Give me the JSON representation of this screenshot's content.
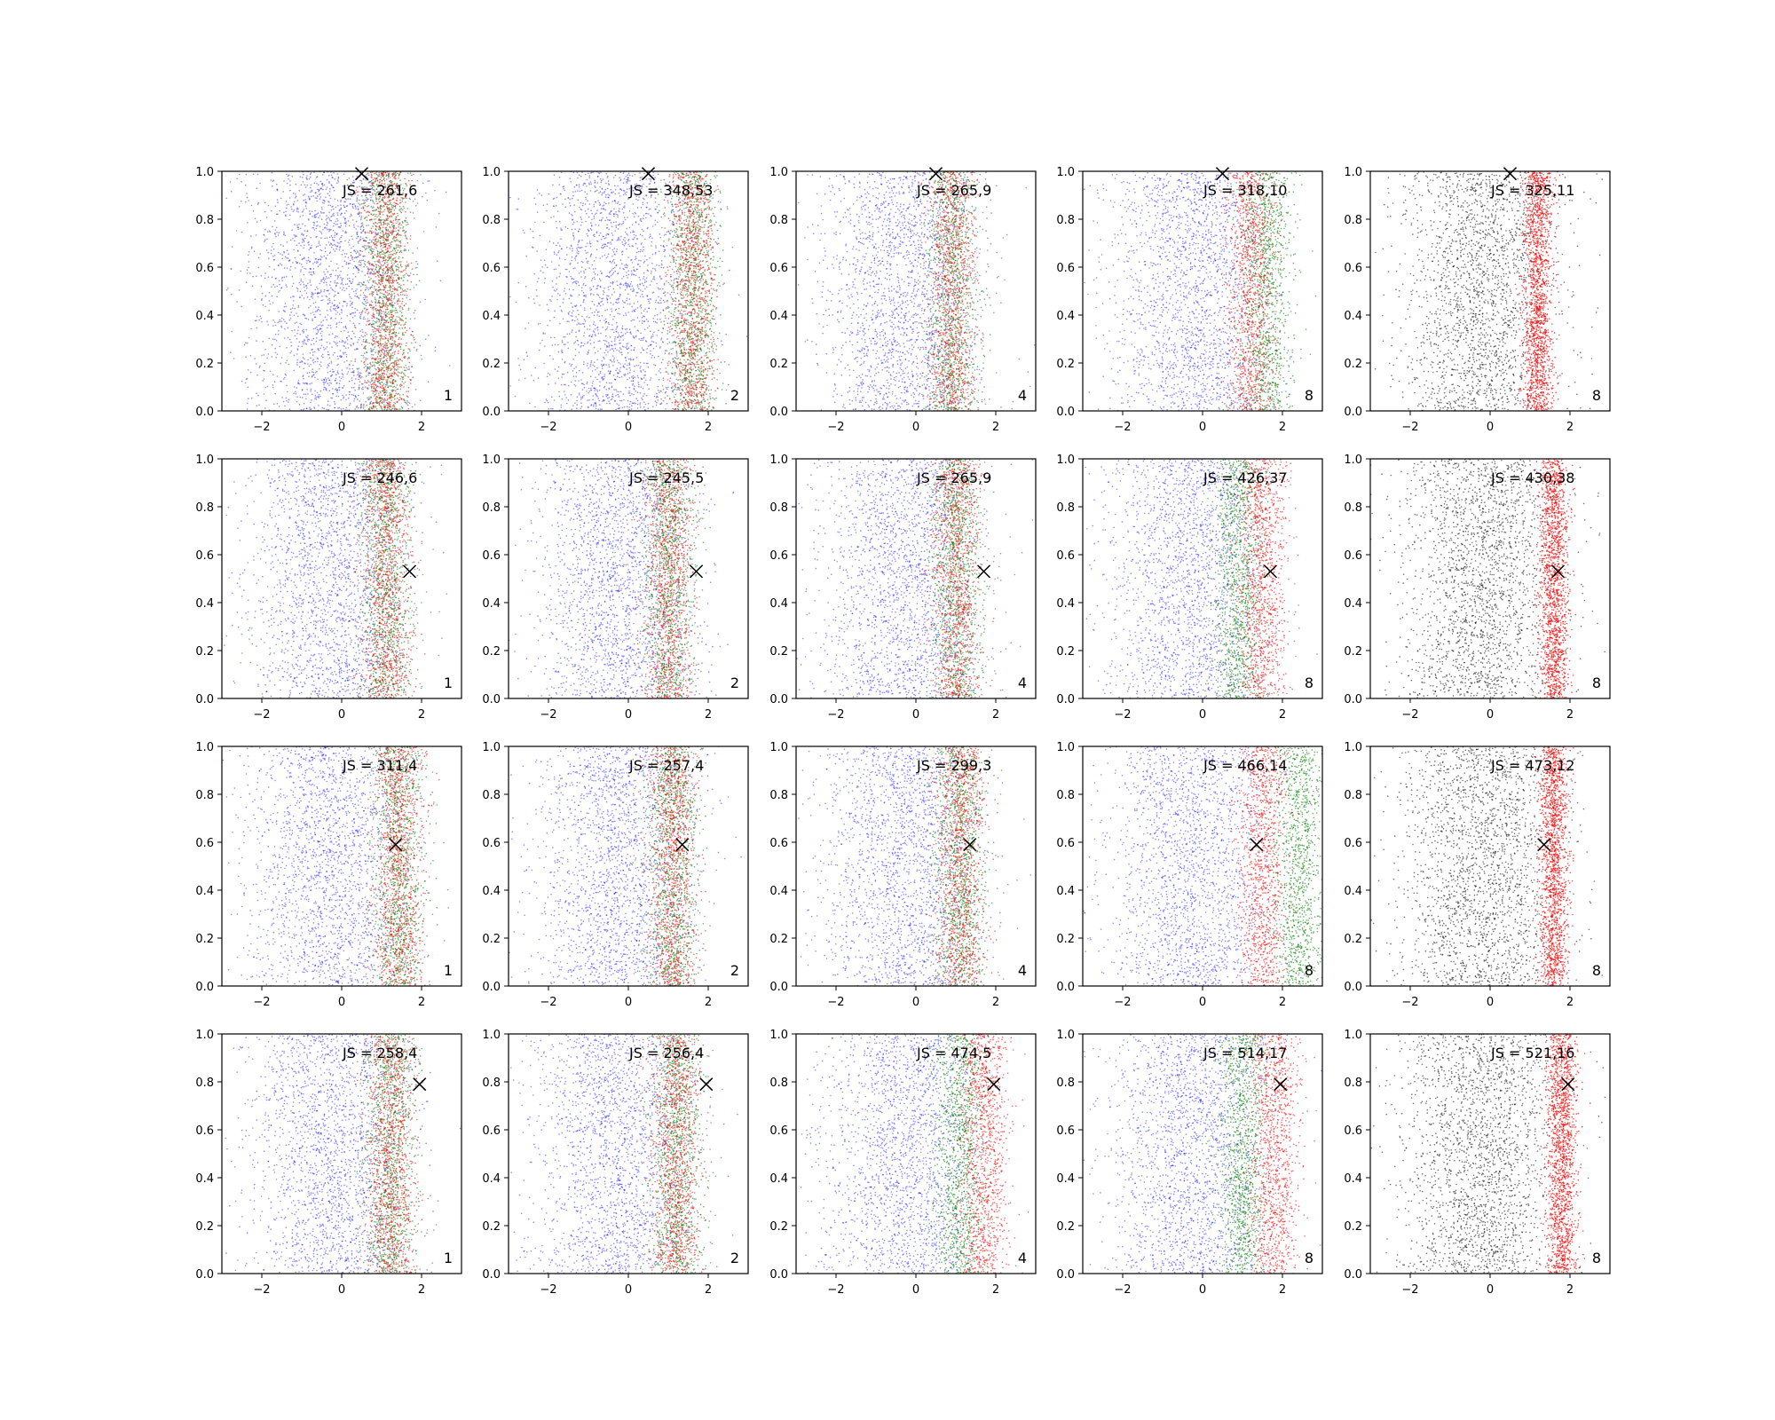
{
  "chart_data": {
    "type": "scatter",
    "layout": {
      "rows": 4,
      "cols": 5
    },
    "xlim": [
      -3,
      3
    ],
    "ylim": [
      0,
      1
    ],
    "xticks": [
      -2,
      0,
      2
    ],
    "yticks": [
      0.0,
      0.2,
      0.4,
      0.6,
      0.8,
      1.0
    ],
    "xtick_labels": [
      "−2",
      "0",
      "2"
    ],
    "ytick_labels": [
      "0.0",
      "0.2",
      "0.4",
      "0.6",
      "0.8",
      "1.0"
    ],
    "colors": {
      "reference": "#0000ff",
      "dark_reference": "#000000",
      "series_a": "#ff0000",
      "series_b": "#008000",
      "marker": "#000000"
    },
    "panels": [
      {
        "row": 0,
        "col": 0,
        "annotation": "JS = 261,6",
        "label": "1",
        "marker": [
          0.5,
          0.99
        ],
        "style": "mixed",
        "red_center": 1.1,
        "green_center": 1.1
      },
      {
        "row": 0,
        "col": 1,
        "annotation": "JS = 348,53",
        "label": "2",
        "marker": [
          0.5,
          0.99
        ],
        "style": "mixed",
        "red_center": 1.6,
        "green_center": 1.6
      },
      {
        "row": 0,
        "col": 2,
        "annotation": "JS = 265,9",
        "label": "4",
        "marker": [
          0.5,
          0.99
        ],
        "style": "mixed",
        "red_center": 0.9,
        "green_center": 0.9
      },
      {
        "row": 0,
        "col": 3,
        "annotation": "JS = 318,10",
        "label": "8",
        "marker": [
          0.5,
          0.99
        ],
        "style": "mixed",
        "red_center": 1.2,
        "green_center": 1.6
      },
      {
        "row": 0,
        "col": 4,
        "annotation": "JS = 325,11",
        "label": "8",
        "marker": [
          0.5,
          0.99
        ],
        "style": "gray_red",
        "red_center": 1.2,
        "green_center": 0
      },
      {
        "row": 1,
        "col": 0,
        "annotation": "JS = 246,6",
        "label": "1",
        "marker": [
          1.7,
          0.53
        ],
        "style": "mixed",
        "red_center": 1.1,
        "green_center": 1.1
      },
      {
        "row": 1,
        "col": 1,
        "annotation": "JS = 245,5",
        "label": "2",
        "marker": [
          1.7,
          0.53
        ],
        "style": "mixed",
        "red_center": 1.0,
        "green_center": 1.0
      },
      {
        "row": 1,
        "col": 2,
        "annotation": "JS = 265,9",
        "label": "4",
        "marker": [
          1.7,
          0.53
        ],
        "style": "mixed",
        "red_center": 1.0,
        "green_center": 1.0
      },
      {
        "row": 1,
        "col": 3,
        "annotation": "JS = 426,37",
        "label": "8",
        "marker": [
          1.7,
          0.53
        ],
        "style": "mixed",
        "red_center": 1.5,
        "green_center": 0.9
      },
      {
        "row": 1,
        "col": 4,
        "annotation": "JS = 430,38",
        "label": "8",
        "marker": [
          1.7,
          0.53
        ],
        "style": "gray_red",
        "red_center": 1.6,
        "green_center": 0
      },
      {
        "row": 2,
        "col": 0,
        "annotation": "JS = 311,4",
        "label": "1",
        "marker": [
          1.35,
          0.59
        ],
        "style": "mixed",
        "red_center": 1.4,
        "green_center": 1.4
      },
      {
        "row": 2,
        "col": 1,
        "annotation": "JS = 257,4",
        "label": "2",
        "marker": [
          1.35,
          0.59
        ],
        "style": "mixed",
        "red_center": 1.1,
        "green_center": 1.1
      },
      {
        "row": 2,
        "col": 2,
        "annotation": "JS = 299,3",
        "label": "4",
        "marker": [
          1.35,
          0.59
        ],
        "style": "mixed",
        "red_center": 1.1,
        "green_center": 1.1
      },
      {
        "row": 2,
        "col": 3,
        "annotation": "JS = 466,14",
        "label": "8",
        "marker": [
          1.35,
          0.59
        ],
        "style": "mixed",
        "red_center": 1.5,
        "green_center": 2.4
      },
      {
        "row": 2,
        "col": 4,
        "annotation": "JS = 473,12",
        "label": "8",
        "marker": [
          1.35,
          0.59
        ],
        "style": "gray_red",
        "red_center": 1.6,
        "green_center": 0
      },
      {
        "row": 3,
        "col": 0,
        "annotation": "JS = 258,4",
        "label": "1",
        "marker": [
          1.95,
          0.79
        ],
        "style": "mixed",
        "red_center": 1.2,
        "green_center": 1.2
      },
      {
        "row": 3,
        "col": 1,
        "annotation": "JS = 256,4",
        "label": "2",
        "marker": [
          1.95,
          0.79
        ],
        "style": "mixed",
        "red_center": 1.2,
        "green_center": 1.2
      },
      {
        "row": 3,
        "col": 2,
        "annotation": "JS = 474,5",
        "label": "4",
        "marker": [
          1.95,
          0.79
        ],
        "style": "mixed",
        "red_center": 1.7,
        "green_center": 1.1
      },
      {
        "row": 3,
        "col": 3,
        "annotation": "JS = 514,17",
        "label": "8",
        "marker": [
          1.95,
          0.79
        ],
        "style": "mixed",
        "red_center": 1.8,
        "green_center": 1.0
      },
      {
        "row": 3,
        "col": 4,
        "annotation": "JS = 521,16",
        "label": "8",
        "marker": [
          1.95,
          0.79
        ],
        "style": "gray_red",
        "red_center": 1.8,
        "green_center": 0
      }
    ]
  }
}
